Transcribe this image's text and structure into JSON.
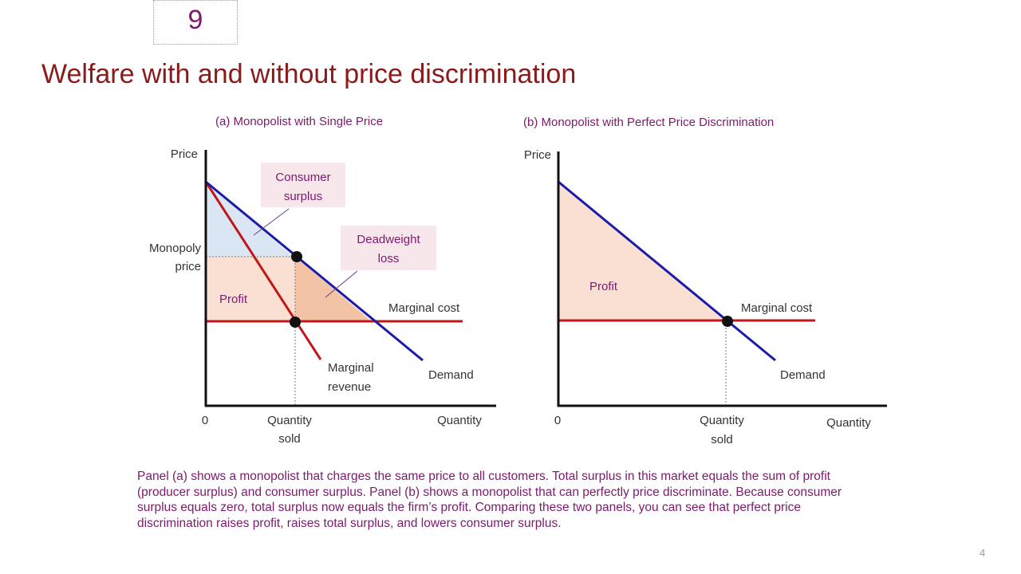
{
  "chapter_number": "9",
  "title": "Welfare with and without price discrimination",
  "panel_a": {
    "title": "(a) Monopolist with Single Price",
    "y_axis": "Price",
    "x_axis": "Quantity",
    "origin": "0",
    "monopoly_price": [
      "Monopoly",
      "price"
    ],
    "quantity_sold": [
      "Quantity",
      "sold"
    ],
    "consumer_surplus": [
      "Consumer",
      "surplus"
    ],
    "deadweight_loss": [
      "Deadweight",
      "loss"
    ],
    "profit": "Profit",
    "marginal_cost": "Marginal cost",
    "marginal_revenue": [
      "Marginal",
      "revenue"
    ],
    "demand": "Demand"
  },
  "panel_b": {
    "title": "(b) Monopolist with Perfect Price Discrimination",
    "y_axis": "Price",
    "x_axis": "Quantity",
    "origin": "0",
    "quantity_sold": [
      "Quantity",
      "sold"
    ],
    "profit": "Profit",
    "marginal_cost": "Marginal cost",
    "demand": "Demand"
  },
  "caption": "Panel (a) shows a monopolist that charges the same price to all customers. Total surplus in this market equals the sum of profit (producer surplus) and consumer surplus. Panel (b) shows a monopolist that can perfectly price discriminate. Because consumer surplus equals zero, total surplus now equals the firm’s profit. Comparing these two panels, you can see that perfect price discrimination raises profit, raises total surplus, and lowers consumer surplus.",
  "page_number": "4",
  "colors": {
    "title": "#8b1a1a",
    "purple_text": "#7b1a6e",
    "demand_line": "#1c1ca8",
    "cost_revenue_line": "#c01818",
    "consumer_surplus_fill": "#dbe6f4",
    "profit_fill": "#f9e0d2",
    "deadweight_fill": "#f3c3a6",
    "label_box_fill": "#f7e6ea"
  }
}
